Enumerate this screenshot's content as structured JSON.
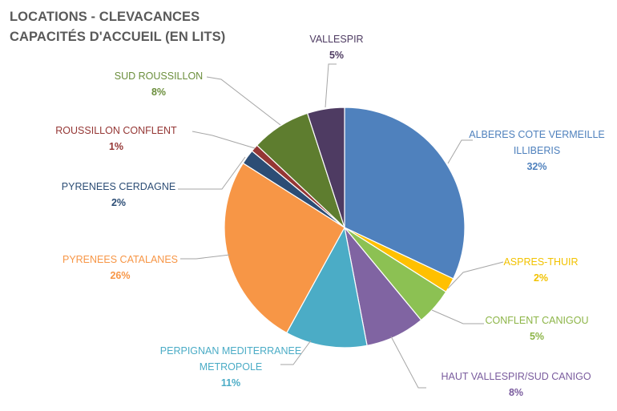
{
  "title_lines": [
    "LOCATIONS - CLEVACANCES",
    "CAPACITÉS D'ACCUEIL (EN LITS)"
  ],
  "chart_data": {
    "type": "pie",
    "title": "LOCATIONS - CLEVACANCES CAPACITÉS D'ACCUEIL (EN LITS)",
    "slices": [
      {
        "label": "ALBERES COTE VERMEILLE ILLIBERIS",
        "value": 32,
        "display": "32%",
        "color": "#4F81BD",
        "label_color": "#4F81BD"
      },
      {
        "label": "ASPRES-THUIR",
        "value": 2,
        "display": "2%",
        "color": "#FFC000",
        "label_color": "#F2C200"
      },
      {
        "label": "CONFLENT CANIGOU",
        "value": 5,
        "display": "5%",
        "color": "#8CC153",
        "label_color": "#8DB548"
      },
      {
        "label": "HAUT VALLESPIR/SUD CANIGO",
        "value": 8,
        "display": "8%",
        "color": "#8064A2",
        "label_color": "#7A5C9E"
      },
      {
        "label": "PERPIGNAN MEDITERRANEE METROPOLE",
        "value": 11,
        "display": "11%",
        "color": "#4BACC6",
        "label_color": "#4BACC6"
      },
      {
        "label": "PYRENEES CATALANES",
        "value": 26,
        "display": "26%",
        "color": "#F79646",
        "label_color": "#F79646"
      },
      {
        "label": "PYRENEES CERDAGNE",
        "value": 2,
        "display": "2%",
        "color": "#2C4D75",
        "label_color": "#2C4D75"
      },
      {
        "label": "ROUSSILLON CONFLENT",
        "value": 1,
        "display": "1%",
        "color": "#953735",
        "label_color": "#953735"
      },
      {
        "label": "SUD ROUSSILLON",
        "value": 8,
        "display": "8%",
        "color": "#5E7D2F",
        "label_color": "#6B8E3C"
      },
      {
        "label": "VALLESPIR",
        "value": 5,
        "display": "5%",
        "color": "#4E3B62",
        "label_color": "#4E3B62"
      }
    ],
    "legend": "none",
    "data_labels": "outside with leader lines"
  }
}
